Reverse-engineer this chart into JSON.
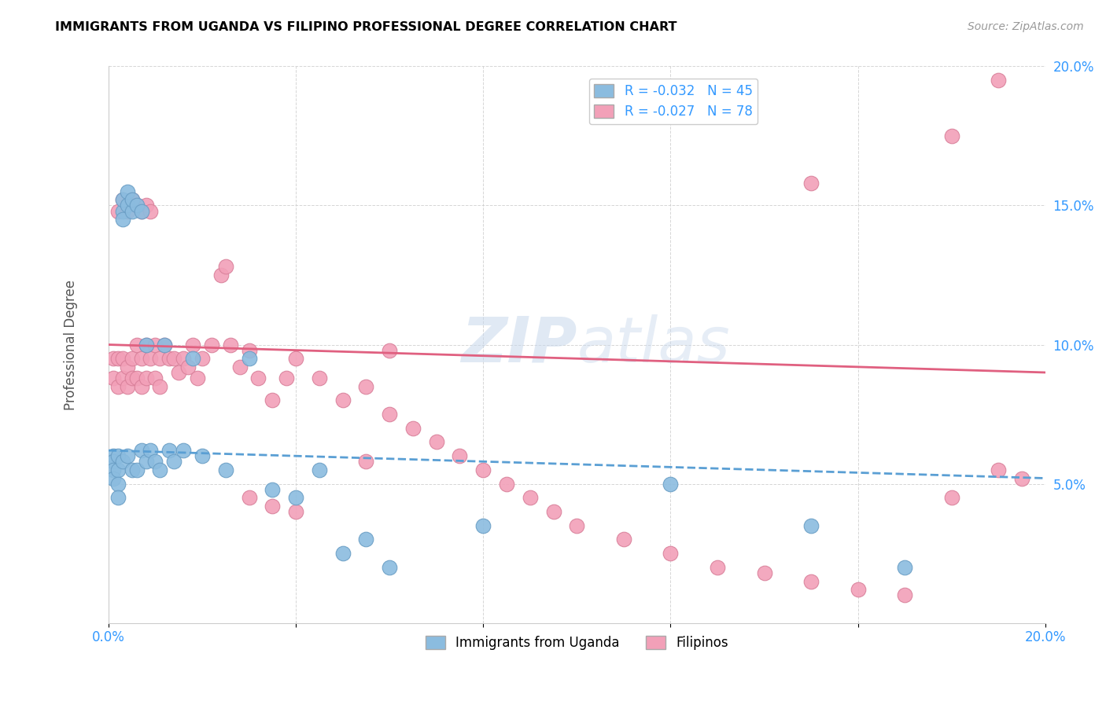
{
  "title": "IMMIGRANTS FROM UGANDA VS FILIPINO PROFESSIONAL DEGREE CORRELATION CHART",
  "source": "Source: ZipAtlas.com",
  "ylabel": "Professional Degree",
  "xlim": [
    0.0,
    0.2
  ],
  "ylim": [
    0.0,
    0.2
  ],
  "xticks": [
    0.0,
    0.04,
    0.08,
    0.12,
    0.16,
    0.2
  ],
  "yticks": [
    0.0,
    0.05,
    0.1,
    0.15,
    0.2
  ],
  "xtick_labels": [
    "0.0%",
    "",
    "",
    "",
    "",
    "20.0%"
  ],
  "ytick_labels": [
    "",
    "5.0%",
    "10.0%",
    "15.0%",
    "20.0%"
  ],
  "uganda_color": "#8BBCDF",
  "uganda_color_edge": "#6A9EC5",
  "filipino_color": "#F2A0B8",
  "filipino_color_edge": "#D9809A",
  "uganda_R": -0.032,
  "uganda_N": 45,
  "filipino_R": -0.027,
  "filipino_N": 78,
  "uganda_line_x": [
    0.0,
    0.2
  ],
  "uganda_line_y": [
    0.062,
    0.052
  ],
  "filipino_line_x": [
    0.0,
    0.2
  ],
  "filipino_line_y": [
    0.1,
    0.09
  ],
  "uganda_scatter_x": [
    0.001,
    0.001,
    0.001,
    0.001,
    0.002,
    0.002,
    0.002,
    0.002,
    0.003,
    0.003,
    0.003,
    0.003,
    0.004,
    0.004,
    0.004,
    0.005,
    0.005,
    0.005,
    0.006,
    0.006,
    0.007,
    0.007,
    0.008,
    0.008,
    0.009,
    0.01,
    0.011,
    0.012,
    0.013,
    0.014,
    0.016,
    0.018,
    0.02,
    0.025,
    0.03,
    0.035,
    0.04,
    0.045,
    0.05,
    0.055,
    0.06,
    0.08,
    0.12,
    0.15,
    0.17
  ],
  "uganda_scatter_y": [
    0.06,
    0.058,
    0.055,
    0.052,
    0.055,
    0.06,
    0.05,
    0.045,
    0.148,
    0.152,
    0.145,
    0.058,
    0.15,
    0.155,
    0.06,
    0.148,
    0.152,
    0.055,
    0.15,
    0.055,
    0.148,
    0.062,
    0.1,
    0.058,
    0.062,
    0.058,
    0.055,
    0.1,
    0.062,
    0.058,
    0.062,
    0.095,
    0.06,
    0.055,
    0.095,
    0.048,
    0.045,
    0.055,
    0.025,
    0.03,
    0.02,
    0.035,
    0.05,
    0.035,
    0.02
  ],
  "filipino_scatter_x": [
    0.001,
    0.001,
    0.002,
    0.002,
    0.002,
    0.003,
    0.003,
    0.003,
    0.004,
    0.004,
    0.004,
    0.005,
    0.005,
    0.005,
    0.006,
    0.006,
    0.006,
    0.007,
    0.007,
    0.007,
    0.008,
    0.008,
    0.008,
    0.009,
    0.009,
    0.01,
    0.01,
    0.011,
    0.011,
    0.012,
    0.013,
    0.014,
    0.015,
    0.016,
    0.017,
    0.018,
    0.019,
    0.02,
    0.022,
    0.024,
    0.025,
    0.026,
    0.028,
    0.03,
    0.032,
    0.035,
    0.038,
    0.04,
    0.045,
    0.05,
    0.055,
    0.06,
    0.065,
    0.07,
    0.075,
    0.08,
    0.085,
    0.09,
    0.095,
    0.1,
    0.11,
    0.12,
    0.13,
    0.14,
    0.15,
    0.16,
    0.17,
    0.18,
    0.19,
    0.195,
    0.03,
    0.035,
    0.04,
    0.055,
    0.06,
    0.18,
    0.19,
    0.15
  ],
  "filipino_scatter_y": [
    0.095,
    0.088,
    0.148,
    0.095,
    0.085,
    0.152,
    0.095,
    0.088,
    0.148,
    0.092,
    0.085,
    0.152,
    0.095,
    0.088,
    0.15,
    0.1,
    0.088,
    0.148,
    0.095,
    0.085,
    0.15,
    0.1,
    0.088,
    0.148,
    0.095,
    0.1,
    0.088,
    0.095,
    0.085,
    0.1,
    0.095,
    0.095,
    0.09,
    0.095,
    0.092,
    0.1,
    0.088,
    0.095,
    0.1,
    0.125,
    0.128,
    0.1,
    0.092,
    0.098,
    0.088,
    0.08,
    0.088,
    0.095,
    0.088,
    0.08,
    0.085,
    0.075,
    0.07,
    0.065,
    0.06,
    0.055,
    0.05,
    0.045,
    0.04,
    0.035,
    0.03,
    0.025,
    0.02,
    0.018,
    0.015,
    0.012,
    0.01,
    0.045,
    0.055,
    0.052,
    0.045,
    0.042,
    0.04,
    0.058,
    0.098,
    0.175,
    0.195,
    0.158
  ]
}
